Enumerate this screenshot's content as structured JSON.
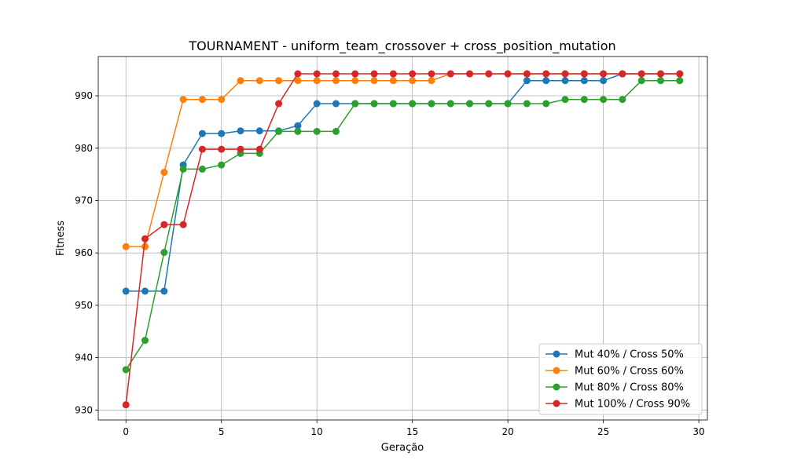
{
  "chart_data": {
    "type": "line",
    "title": "TOURNAMENT - uniform_team_crossover + cross_position_mutation",
    "xlabel": "Geração",
    "ylabel": "Fitness",
    "xlim": [
      -1.45,
      30.45
    ],
    "ylim": [
      928.1,
      997.5
    ],
    "xticks": [
      0,
      5,
      10,
      15,
      20,
      25,
      30
    ],
    "yticks": [
      930,
      940,
      950,
      960,
      970,
      980,
      990
    ],
    "grid": true,
    "legend_position": "lower-right",
    "marker": "circle",
    "x": [
      0,
      1,
      2,
      3,
      4,
      5,
      6,
      7,
      8,
      9,
      10,
      11,
      12,
      13,
      14,
      15,
      16,
      17,
      18,
      19,
      20,
      21,
      22,
      23,
      24,
      25,
      26,
      27,
      28,
      29
    ],
    "series": [
      {
        "name": "Mut 40% / Cross 50%",
        "color": "#1f77b4",
        "values": [
          952.7,
          952.7,
          952.7,
          976.8,
          982.8,
          982.8,
          983.3,
          983.3,
          983.3,
          984.3,
          988.5,
          988.5,
          988.5,
          988.5,
          988.5,
          988.5,
          988.5,
          988.5,
          988.5,
          988.5,
          988.5,
          992.9,
          992.9,
          992.9,
          992.9,
          992.9,
          994.2,
          994.2,
          994.2,
          994.2
        ]
      },
      {
        "name": "Mut 60% / Cross 60%",
        "color": "#ff7f0e",
        "values": [
          961.2,
          961.2,
          975.4,
          989.3,
          989.3,
          989.3,
          992.9,
          992.9,
          992.9,
          992.9,
          992.9,
          992.9,
          992.9,
          992.9,
          992.9,
          992.9,
          992.9,
          994.2,
          994.2,
          994.2,
          994.2,
          994.2,
          994.2,
          994.2,
          994.2,
          994.2,
          994.2,
          994.2,
          994.2,
          994.2
        ]
      },
      {
        "name": "Mut 80% / Cross 80%",
        "color": "#2ca02c",
        "values": [
          937.7,
          943.3,
          960.1,
          976.0,
          976.0,
          976.8,
          979.0,
          979.0,
          983.2,
          983.2,
          983.2,
          983.2,
          988.5,
          988.5,
          988.5,
          988.5,
          988.5,
          988.5,
          988.5,
          988.5,
          988.5,
          988.5,
          988.5,
          989.3,
          989.3,
          989.3,
          989.3,
          992.9,
          992.9,
          992.9
        ]
      },
      {
        "name": "Mut 100% / Cross 90%",
        "color": "#d62728",
        "values": [
          931.0,
          962.7,
          965.4,
          965.4,
          979.8,
          979.8,
          979.8,
          979.8,
          988.5,
          994.2,
          994.2,
          994.2,
          994.2,
          994.2,
          994.2,
          994.2,
          994.2,
          994.2,
          994.2,
          994.2,
          994.2,
          994.2,
          994.2,
          994.2,
          994.2,
          994.2,
          994.2,
          994.2,
          994.2,
          994.2
        ]
      }
    ]
  }
}
